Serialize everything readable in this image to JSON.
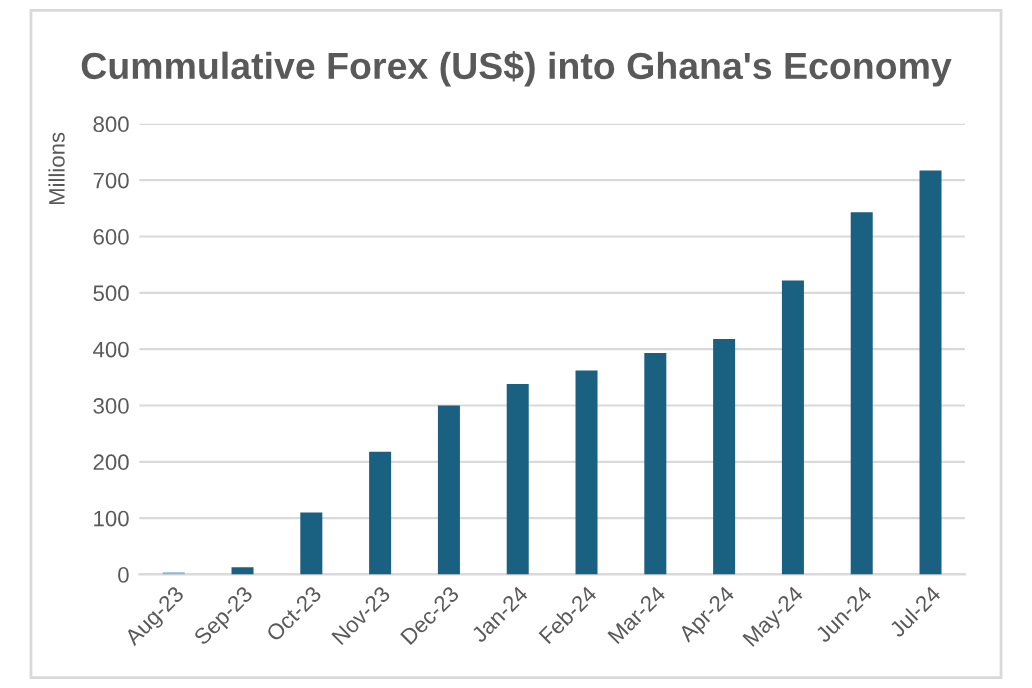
{
  "chart_data": {
    "type": "bar",
    "title": "Cummulative Forex (US$) into Ghana's Economy",
    "ylabel": "Millions",
    "categories": [
      "Aug-23",
      "Sep-23",
      "Oct-23",
      "Nov-23",
      "Dec-23",
      "Jan-24",
      "Feb-24",
      "Mar-24",
      "Apr-24",
      "May-24",
      "Jun-24",
      "Jul-24"
    ],
    "values": [
      4,
      13,
      110,
      218,
      300,
      338,
      362,
      393,
      418,
      522,
      643,
      717
    ],
    "colors": [
      "#8fb9cc",
      "#1a6080",
      "#1a6080",
      "#1a6080",
      "#1a6080",
      "#1a6080",
      "#1a6080",
      "#1a6080",
      "#1a6080",
      "#1a6080",
      "#1a6080",
      "#1a6080"
    ],
    "ylim": [
      0,
      800
    ],
    "yticks": [
      0,
      100,
      200,
      300,
      400,
      500,
      600,
      700,
      800
    ],
    "grid": "y"
  }
}
